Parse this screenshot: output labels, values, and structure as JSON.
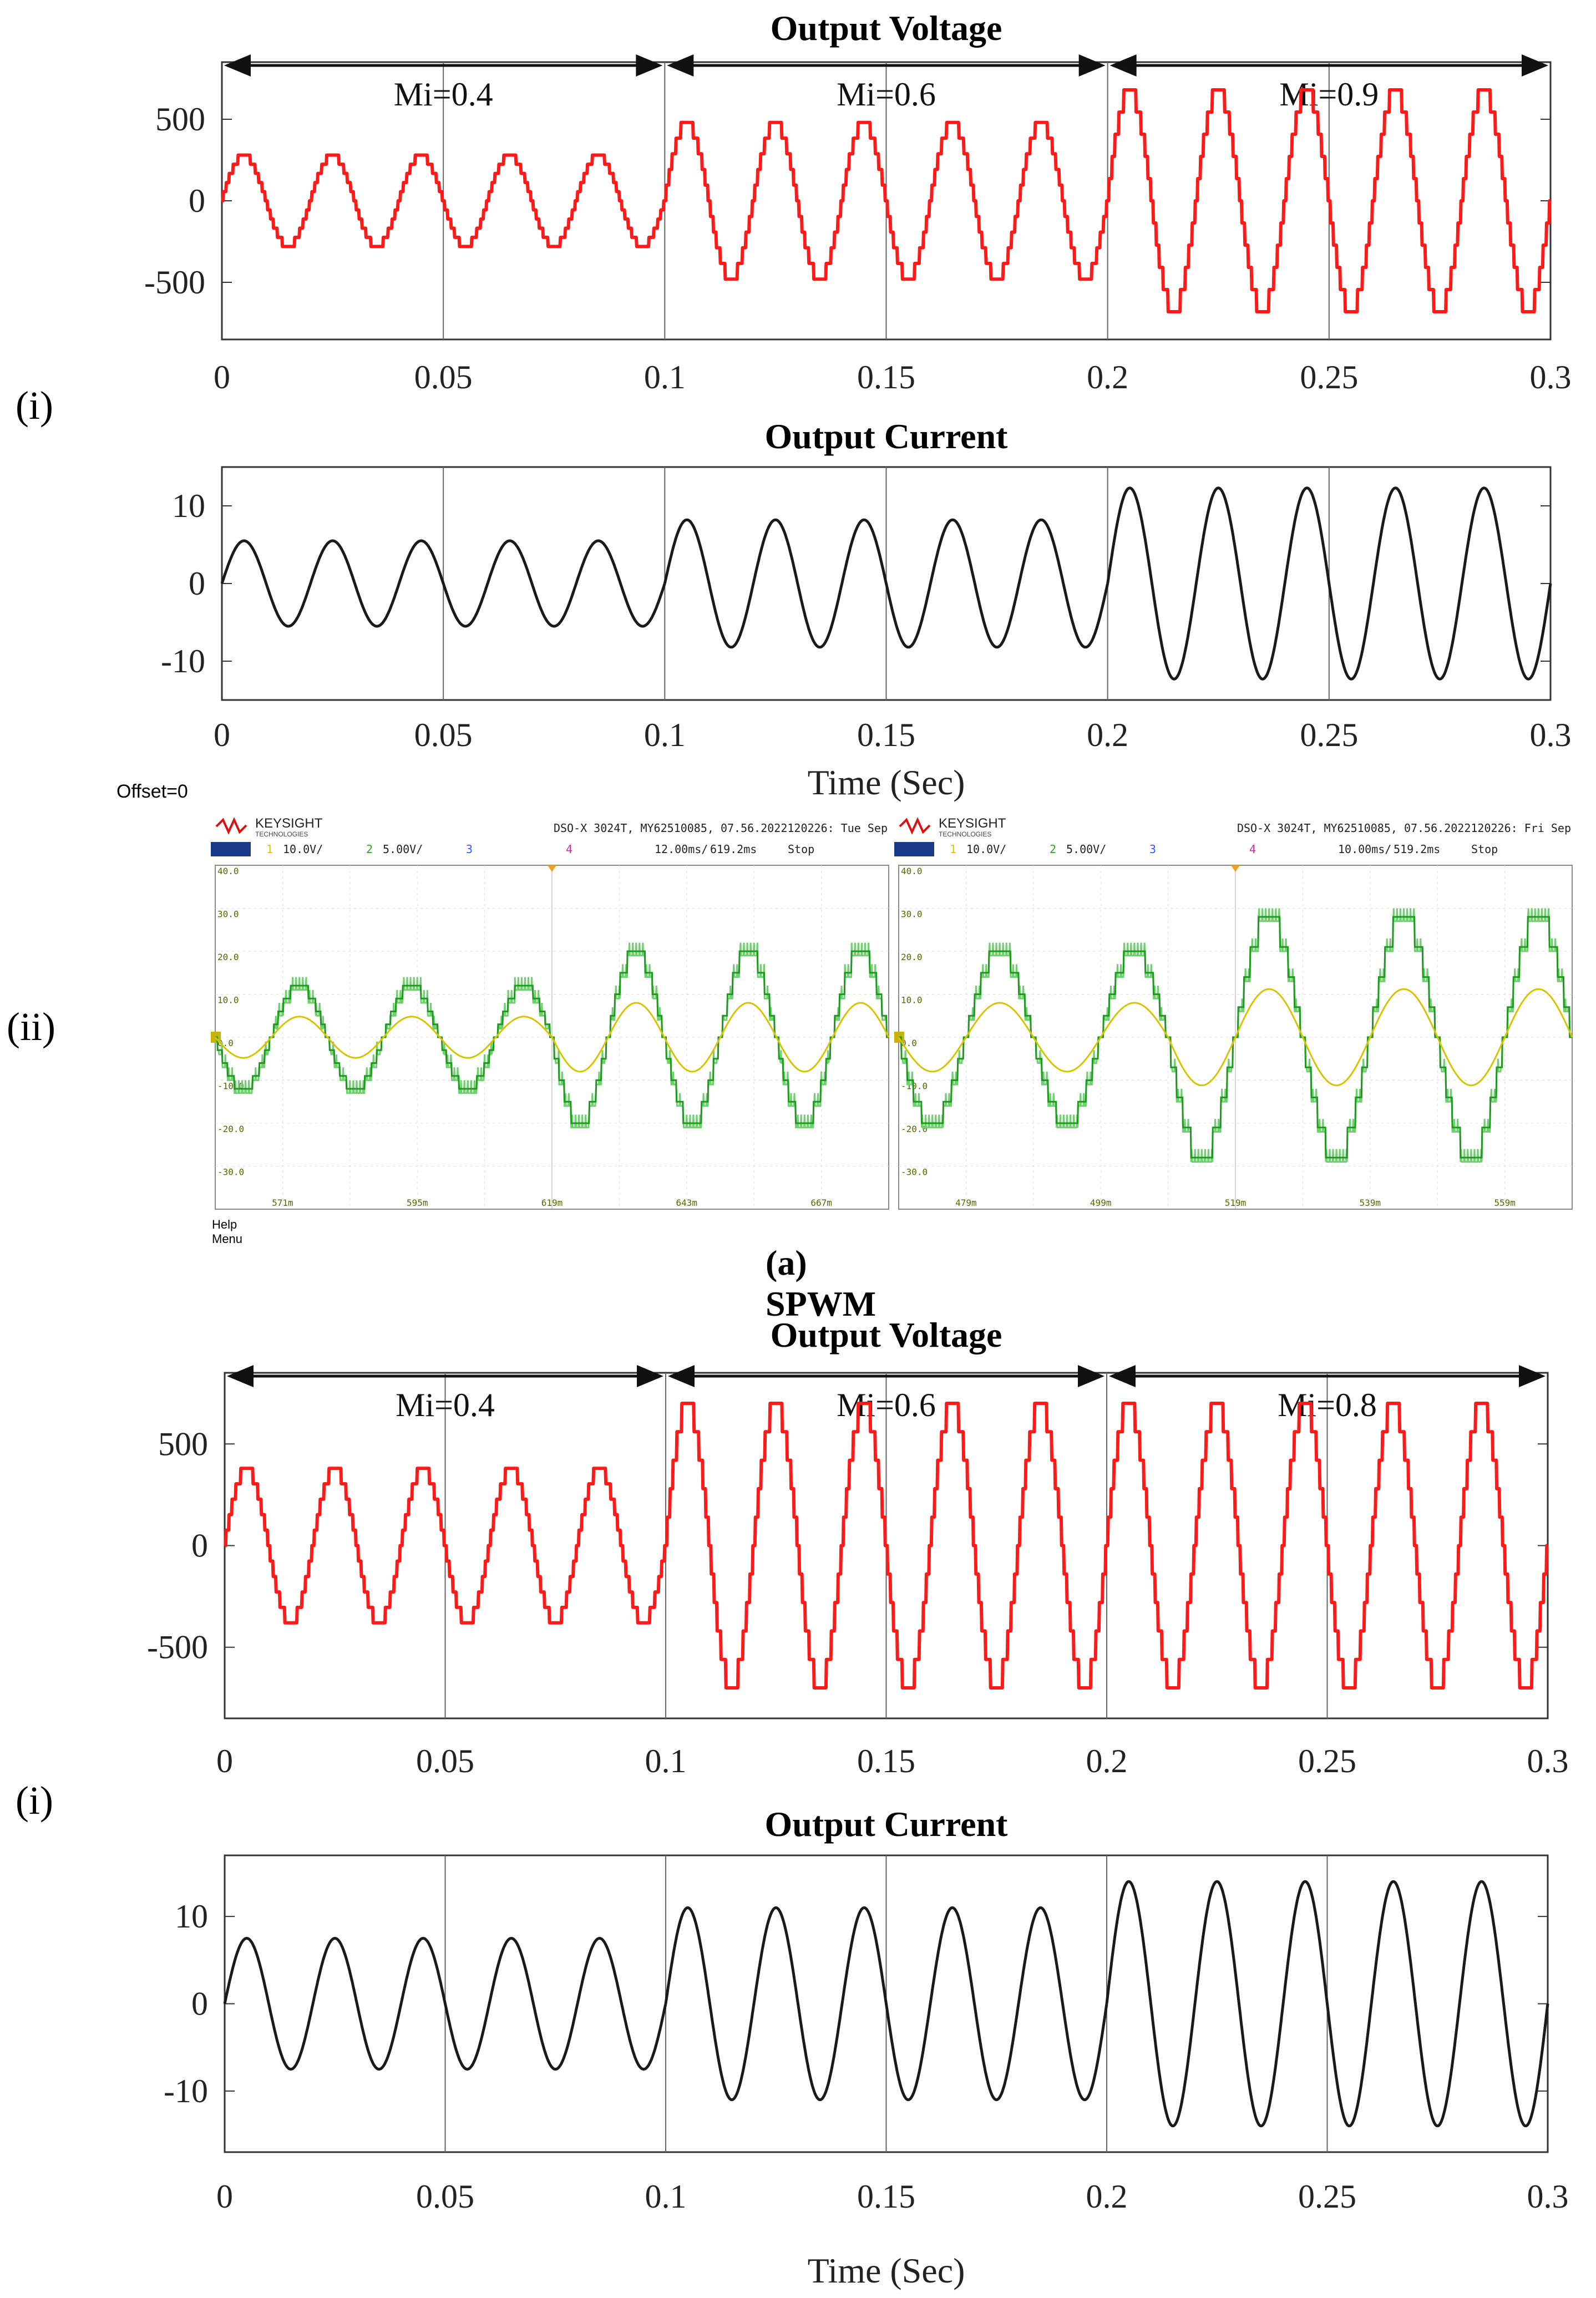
{
  "figure": {
    "panel_labels": {
      "a_sim": "(i)",
      "a_scope": "(ii)",
      "b_sim": "(i)"
    },
    "section_caption": "(a) SPWM",
    "colors": {
      "voltage": "#ff1a1a",
      "current": "#1a1a1a",
      "scope_bg": "#ffffff",
      "scope_green": "#1e9a1e",
      "scope_light_green": "#6fd06f",
      "scope_yellow": "#d6c400"
    }
  },
  "oscilloscope": {
    "offset_text": "Offset=0",
    "brand": "KEYSIGHT",
    "brand_sub": "TECHNOLOGIES",
    "help_menu": "Help Menu",
    "screens": [
      {
        "model": "DSO-X 3024T, MY62510085, 07.56.2022120226: Tue Sep",
        "ch1": "10.0V/",
        "ch2": "5.00V/",
        "ch3_label": "3",
        "ch4_label": "4",
        "timebase": "12.00ms/",
        "delay": "619.2ms",
        "mode": "Stop",
        "y_ticks": [
          "40.0",
          "30.0",
          "20.0",
          "10.0",
          "0.0",
          "-10.0",
          "-20.0",
          "-30.0"
        ],
        "x_ticks": [
          "571m",
          "595m",
          "619m",
          "643m",
          "667m"
        ],
        "amplitudes": [
          12,
          12,
          12,
          20,
          20,
          20
        ]
      },
      {
        "model": "DSO-X 3024T, MY62510085, 07.56.2022120226: Fri Sep",
        "ch1": "10.0V/",
        "ch2": "5.00V/",
        "ch3_label": "3",
        "ch4_label": "4",
        "timebase": "10.00ms/",
        "delay": "519.2ms",
        "mode": "Stop",
        "y_ticks": [
          "40.0",
          "30.0",
          "20.0",
          "10.0",
          "0.0",
          "-10.0",
          "-20.0",
          "-30.0"
        ],
        "x_ticks": [
          "479m",
          "499m",
          "519m",
          "539m",
          "559m"
        ],
        "amplitudes": [
          20,
          20,
          28,
          28,
          28
        ]
      }
    ]
  },
  "chart_data": [
    {
      "id": "a-voltage",
      "type": "line",
      "title": "Output Voltage",
      "xlabel": "",
      "ylabel": "",
      "xlim": [
        0,
        0.3
      ],
      "ylim": [
        -850,
        850
      ],
      "x_ticks": [
        "0",
        "0.05",
        "0.1",
        "0.15",
        "0.2",
        "0.25",
        "0.3"
      ],
      "y_ticks": [
        "500",
        "0",
        "-500"
      ],
      "frequency_hz": 50,
      "segments": [
        {
          "label": "Mi=0.4",
          "x_range": [
            0,
            0.1
          ],
          "amplitude": 280
        },
        {
          "label": "Mi=0.6",
          "x_range": [
            0.1,
            0.2
          ],
          "amplitude": 480
        },
        {
          "label": "Mi=0.9",
          "x_range": [
            0.2,
            0.3
          ],
          "amplitude": 680
        }
      ],
      "waveform": "staircase",
      "color": "#ff1a1a"
    },
    {
      "id": "a-current",
      "type": "line",
      "title": "Output Current",
      "xlabel": "Time (Sec)",
      "ylabel": "",
      "xlim": [
        0,
        0.3
      ],
      "ylim": [
        -15,
        15
      ],
      "x_ticks": [
        "0",
        "0.05",
        "0.1",
        "0.15",
        "0.2",
        "0.25",
        "0.3"
      ],
      "y_ticks": [
        "10",
        "0",
        "-10"
      ],
      "frequency_hz": 50,
      "segments": [
        {
          "label": "",
          "x_range": [
            0,
            0.1
          ],
          "amplitude": 5.5
        },
        {
          "label": "",
          "x_range": [
            0.1,
            0.2
          ],
          "amplitude": 8.2
        },
        {
          "label": "",
          "x_range": [
            0.2,
            0.3
          ],
          "amplitude": 12.3
        }
      ],
      "waveform": "sine",
      "color": "#1a1a1a"
    },
    {
      "id": "b-voltage",
      "type": "line",
      "title": "Output Voltage",
      "xlabel": "",
      "ylabel": "",
      "xlim": [
        0,
        0.3
      ],
      "ylim": [
        -850,
        850
      ],
      "x_ticks": [
        "0",
        "0.05",
        "0.1",
        "0.15",
        "0.2",
        "0.25",
        "0.3"
      ],
      "y_ticks": [
        "500",
        "0",
        "-500"
      ],
      "frequency_hz": 50,
      "segments": [
        {
          "label": "Mi=0.4",
          "x_range": [
            0,
            0.1
          ],
          "amplitude": 380
        },
        {
          "label": "Mi=0.6",
          "x_range": [
            0.1,
            0.2
          ],
          "amplitude": 700
        },
        {
          "label": "Mi=0.8",
          "x_range": [
            0.2,
            0.3
          ],
          "amplitude": 700
        }
      ],
      "waveform": "staircase",
      "color": "#ff1a1a"
    },
    {
      "id": "b-current",
      "type": "line",
      "title": "Output Current",
      "xlabel": "Time (Sec)",
      "ylabel": "",
      "xlim": [
        0,
        0.3
      ],
      "ylim": [
        -17,
        17
      ],
      "x_ticks": [
        "0",
        "0.05",
        "0.1",
        "0.15",
        "0.2",
        "0.25",
        "0.3"
      ],
      "y_ticks": [
        "10",
        "0",
        "-10"
      ],
      "frequency_hz": 50,
      "segments": [
        {
          "label": "",
          "x_range": [
            0,
            0.1
          ],
          "amplitude": 7.5
        },
        {
          "label": "",
          "x_range": [
            0.1,
            0.2
          ],
          "amplitude": 11
        },
        {
          "label": "",
          "x_range": [
            0.2,
            0.3
          ],
          "amplitude": 14
        }
      ],
      "waveform": "sine",
      "color": "#1a1a1a"
    }
  ]
}
